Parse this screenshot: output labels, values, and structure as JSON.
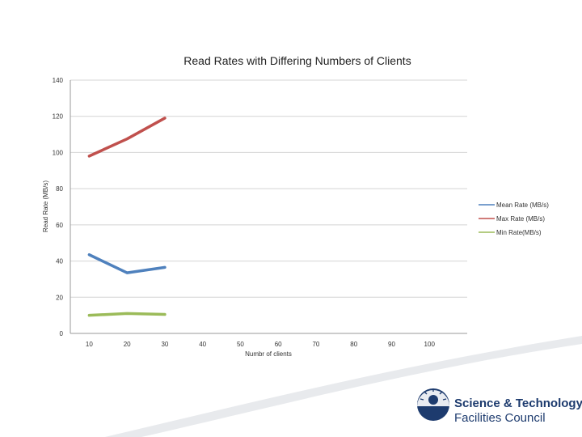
{
  "chart_data": {
    "type": "line",
    "title": "Read Rates with Differing Numbers of Clients",
    "xlabel": "Numbr of clients",
    "ylabel": "Read Rate (MB/s)",
    "x_ticks": [
      10,
      20,
      30,
      40,
      50,
      60,
      70,
      80,
      90,
      100
    ],
    "y_ticks": [
      0,
      20,
      40,
      60,
      80,
      100,
      120,
      140
    ],
    "xlim": [
      5,
      110
    ],
    "ylim": [
      0,
      140
    ],
    "grid": true,
    "legend_position": "right",
    "series": [
      {
        "name": "Mean Rate (MB/s)",
        "color": "#4f81bd",
        "x": [
          10,
          20,
          30
        ],
        "values": [
          43.5,
          33.5,
          36.5
        ]
      },
      {
        "name": "Max Rate (MB/s)",
        "color": "#c0504d",
        "x": [
          10,
          20,
          30
        ],
        "values": [
          98,
          107.5,
          119
        ]
      },
      {
        "name": "Min Rate(MB/s)",
        "color": "#9bbb59",
        "x": [
          10,
          20,
          30
        ],
        "values": [
          10,
          11,
          10.5
        ]
      }
    ]
  },
  "logo": {
    "line1": "Science & Technology",
    "line2": "Facilities Council",
    "primary_color": "#1d3b6e"
  }
}
